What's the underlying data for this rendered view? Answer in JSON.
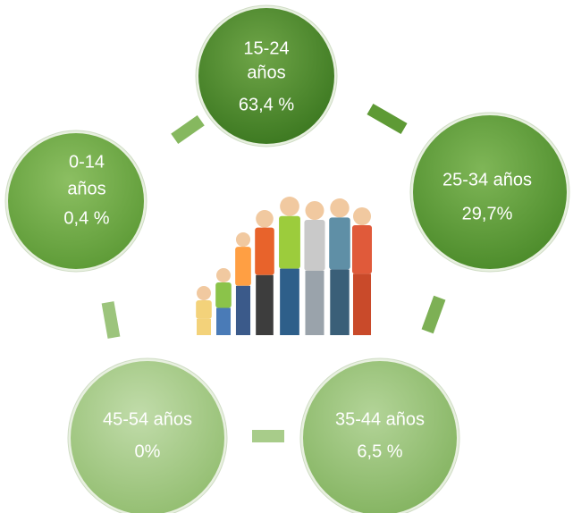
{
  "nodes": [
    {
      "lines": [
        "15-24",
        "años",
        "63,4 %"
      ]
    },
    {
      "lines": [
        "25-34 años",
        "29,7%"
      ]
    },
    {
      "lines": [
        "35-44 años",
        "6,5 %"
      ]
    },
    {
      "lines": [
        "45-54 años",
        "0%"
      ]
    },
    {
      "lines": [
        "0-14",
        "años",
        "0,4 %"
      ]
    }
  ]
}
